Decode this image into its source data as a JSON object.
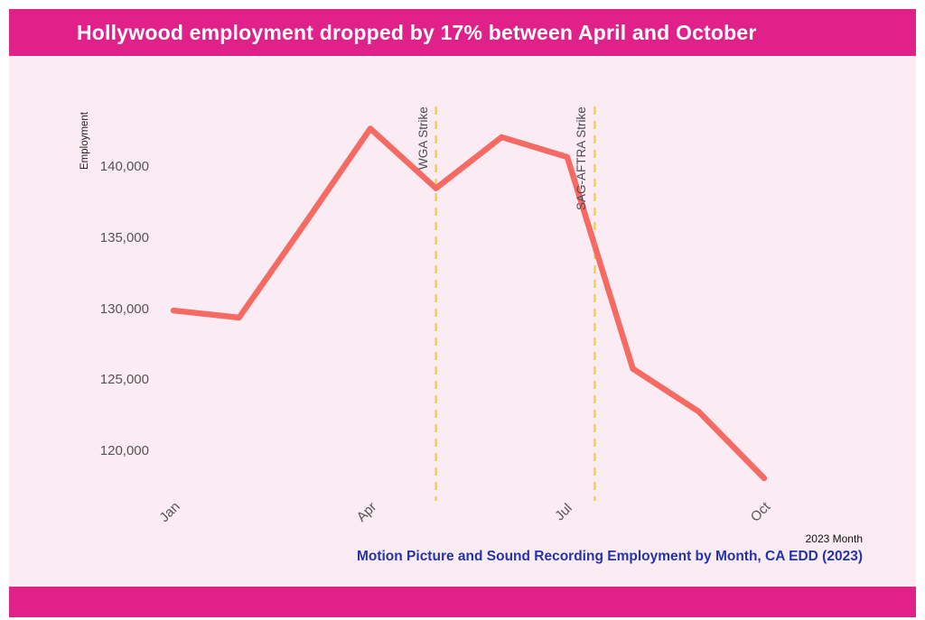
{
  "header": {
    "title": "Hollywood employment dropped by 17% between April and October"
  },
  "chart_data": {
    "type": "line",
    "title": "Hollywood employment dropped by 17% between April and October",
    "categories": [
      "Jan",
      "Feb",
      "Mar",
      "Apr",
      "May",
      "Jun",
      "Jul",
      "Aug",
      "Sep",
      "Oct"
    ],
    "series": [
      {
        "name": "Motion Picture and Sound Recording Employment",
        "values": [
          129900,
          129400,
          136000,
          142700,
          138500,
          142100,
          140700,
          125800,
          122800,
          118100
        ]
      }
    ],
    "ylabel": "Employment",
    "xlabel": "2023 Month",
    "ylim": [
      117000,
      143500
    ],
    "grid": false,
    "legend": "none",
    "yticks": [
      {
        "value": 140000,
        "label": "140,000"
      },
      {
        "value": 135000,
        "label": "135,000"
      },
      {
        "value": 130000,
        "label": "130,000"
      },
      {
        "value": 125000,
        "label": "125,000"
      },
      {
        "value": 120000,
        "label": "120,000"
      }
    ],
    "xticks": [
      {
        "index": 0,
        "label": "Jan"
      },
      {
        "index": 3,
        "label": "Apr"
      },
      {
        "index": 6,
        "label": "Jul"
      },
      {
        "index": 9,
        "label": "Oct"
      }
    ],
    "annotations": [
      {
        "label": "WGA Strike",
        "month_index": 4.0
      },
      {
        "label": "SAG-AFTRA Strike",
        "month_index": 6.42
      }
    ],
    "colors": {
      "line": "#F56B63",
      "annotation_line": "#F2CC3F",
      "annotation_text": "#4A4A57",
      "tick_text": "#555555"
    }
  },
  "caption": {
    "text": "Motion Picture and Sound Recording Employment by Month, CA EDD (2023)",
    "color": "#2433AE"
  },
  "theme": {
    "page_bg": "#FFFFFF",
    "card_bg": "#FBEBF3",
    "header_bg": "#E0218A",
    "title_color": "#FFFFFF"
  }
}
